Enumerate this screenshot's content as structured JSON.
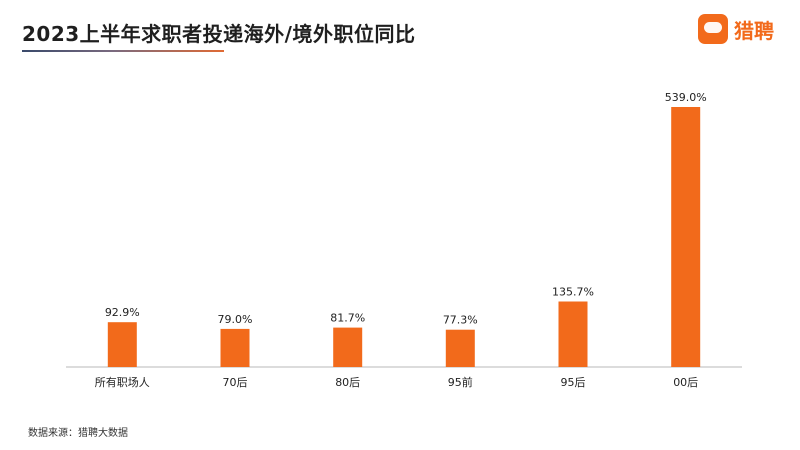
{
  "header": {
    "title": "2023上半年求职者投递海外/境外职位同比",
    "logo_text": "猎聘"
  },
  "footer": {
    "source": "数据来源：猎聘大数据"
  },
  "colors": {
    "bar": "#f26a1b",
    "axis": "#b8b8b8",
    "text": "#222222"
  },
  "chart_data": {
    "type": "bar",
    "title": "2023上半年求职者投递海外/境外职位同比",
    "categories": [
      "所有职场人",
      "70后",
      "80后",
      "95前",
      "95后",
      "00后"
    ],
    "values": [
      92.9,
      79.0,
      81.7,
      77.3,
      135.7,
      539.0
    ],
    "value_labels": [
      "92.9%",
      "79.0%",
      "81.7%",
      "77.3%",
      "135.7%",
      "539.0%"
    ],
    "unit": "%",
    "ylim": [
      0,
      560
    ],
    "grid": false,
    "legend": "none"
  }
}
